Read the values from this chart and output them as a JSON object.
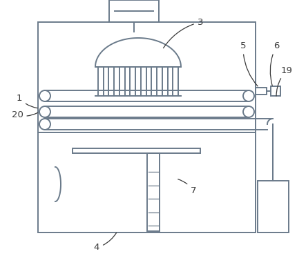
{
  "bg_color": "#ffffff",
  "line_color": "#6a7a8a",
  "label_color": "#3a3a3a",
  "figsize": [
    4.3,
    3.87
  ],
  "dpi": 100
}
